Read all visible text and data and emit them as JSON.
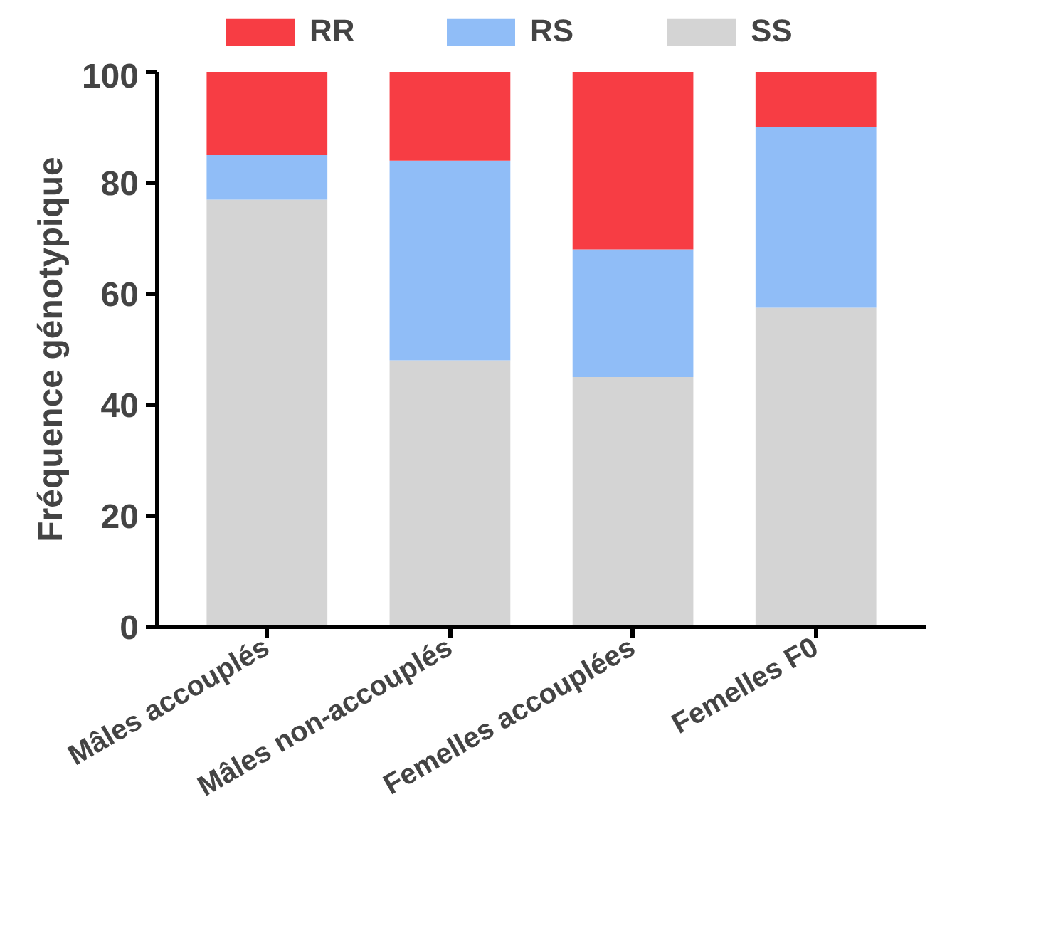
{
  "chart_data": {
    "type": "bar",
    "stacked": true,
    "ylabel": "Fréquence génotypique",
    "categories": [
      "Mâles accouplés",
      "Mâles non-accouplés",
      "Femelles accouplées",
      "Femelles F0"
    ],
    "series": [
      {
        "name": "SS",
        "color": "#d4d4d4",
        "values": [
          77,
          48,
          45,
          57.5
        ]
      },
      {
        "name": "RS",
        "color": "#90bdf7",
        "values": [
          8,
          36,
          23,
          32.5
        ]
      },
      {
        "name": "RR",
        "color": "#f73d44",
        "values": [
          15,
          16,
          32,
          10
        ]
      }
    ],
    "ylim": [
      0,
      100
    ],
    "yticks": [
      0,
      20,
      40,
      60,
      80,
      100
    ],
    "grid": false,
    "legend": "top"
  }
}
